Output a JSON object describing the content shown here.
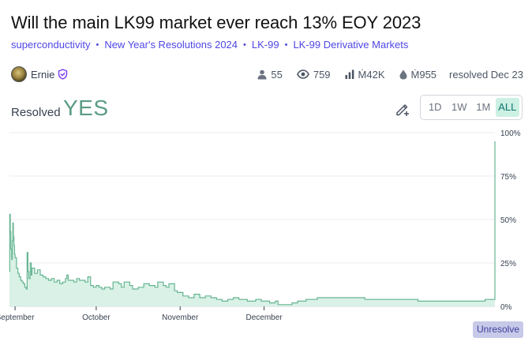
{
  "market": {
    "title": "Will the main LK99 market ever reach 13% EOY 2023",
    "tags": [
      "superconductivity",
      "New Year's Resolutions 2024",
      "LK-99",
      "LK-99 Derivative Markets"
    ],
    "author": "Ernie",
    "stats": {
      "traders": "55",
      "views": "759",
      "volume": "Ṁ42K",
      "liquidity": "Ṁ955",
      "resolved": "resolved Dec 23"
    },
    "resolved_label": "Resolved",
    "resolution": "YES"
  },
  "time_range": {
    "options": [
      "1D",
      "1W",
      "1M",
      "ALL"
    ],
    "selected": "ALL"
  },
  "colors": {
    "accent": "#4f46e5",
    "yes": "#5b9d84",
    "line": "#66b592",
    "fill": "#d9f1e6"
  },
  "actions": {
    "unresolve": "Unresolve"
  },
  "chart_data": {
    "type": "area",
    "xlabels": [
      "September",
      "October",
      "November",
      "December"
    ],
    "ytick_labels": [
      "100%",
      "75%",
      "50%",
      "25%",
      "0%"
    ],
    "ylim": [
      0,
      100
    ],
    "x_unit": "days since Aug 29 2023",
    "points": [
      [
        0,
        20
      ],
      [
        0.1,
        53
      ],
      [
        0.3,
        43
      ],
      [
        0.5,
        33
      ],
      [
        0.8,
        27
      ],
      [
        1,
        38
      ],
      [
        1.2,
        48
      ],
      [
        1.4,
        40
      ],
      [
        1.6,
        35
      ],
      [
        1.8,
        30
      ],
      [
        2,
        28
      ],
      [
        2.5,
        22
      ],
      [
        3,
        19
      ],
      [
        3.5,
        17
      ],
      [
        4,
        15
      ],
      [
        4.5,
        14
      ],
      [
        5,
        13
      ],
      [
        5.5,
        11
      ],
      [
        6,
        10
      ],
      [
        6.3,
        31
      ],
      [
        6.6,
        20
      ],
      [
        6.9,
        16
      ],
      [
        7.4,
        25
      ],
      [
        7.8,
        18
      ],
      [
        8,
        22
      ],
      [
        9,
        19
      ],
      [
        10,
        21
      ],
      [
        11,
        18
      ],
      [
        12,
        17
      ],
      [
        13,
        16
      ],
      [
        14,
        15
      ],
      [
        15,
        16
      ],
      [
        16,
        14
      ],
      [
        17,
        15
      ],
      [
        18,
        13
      ],
      [
        19,
        14
      ],
      [
        20,
        16
      ],
      [
        20.5,
        18
      ],
      [
        21,
        15
      ],
      [
        23,
        14
      ],
      [
        24,
        16
      ],
      [
        25,
        15
      ],
      [
        27,
        14
      ],
      [
        28,
        17
      ],
      [
        29,
        12
      ],
      [
        30,
        11
      ],
      [
        31,
        12
      ],
      [
        32,
        11
      ],
      [
        33,
        10
      ],
      [
        34,
        11
      ],
      [
        36,
        10
      ],
      [
        37,
        14
      ],
      [
        39,
        13
      ],
      [
        40,
        11
      ],
      [
        41,
        14
      ],
      [
        43,
        12
      ],
      [
        44,
        10
      ],
      [
        46,
        11
      ],
      [
        48,
        13
      ],
      [
        50,
        12
      ],
      [
        52,
        11
      ],
      [
        53,
        14
      ],
      [
        55,
        12
      ],
      [
        56,
        11
      ],
      [
        57,
        13
      ],
      [
        59,
        9
      ],
      [
        60,
        8
      ],
      [
        62,
        6
      ],
      [
        64,
        5
      ],
      [
        66,
        7
      ],
      [
        68,
        5
      ],
      [
        70,
        6
      ],
      [
        72,
        5
      ],
      [
        74,
        4
      ],
      [
        76,
        3
      ],
      [
        78,
        4
      ],
      [
        80,
        5
      ],
      [
        82,
        4
      ],
      [
        85,
        3
      ],
      [
        88,
        4
      ],
      [
        90,
        3
      ],
      [
        93,
        2
      ],
      [
        95,
        3
      ],
      [
        96,
        1
      ],
      [
        98,
        1
      ],
      [
        101,
        2
      ],
      [
        103,
        3
      ],
      [
        106,
        4
      ],
      [
        110,
        5
      ],
      [
        114,
        5
      ],
      [
        118,
        5
      ],
      [
        122,
        5
      ],
      [
        126,
        5
      ],
      [
        127,
        4
      ],
      [
        130,
        4
      ],
      [
        134,
        4
      ],
      [
        138,
        4
      ],
      [
        142,
        4
      ],
      [
        146,
        3
      ],
      [
        150,
        3
      ],
      [
        154,
        3
      ],
      [
        158,
        3
      ],
      [
        162,
        3
      ],
      [
        166,
        3
      ],
      [
        170,
        4
      ],
      [
        172,
        4
      ],
      [
        173,
        4
      ],
      [
        173.5,
        95
      ]
    ],
    "x_ticks": [
      2,
      31,
      61,
      91
    ],
    "x_max": 173.5
  }
}
